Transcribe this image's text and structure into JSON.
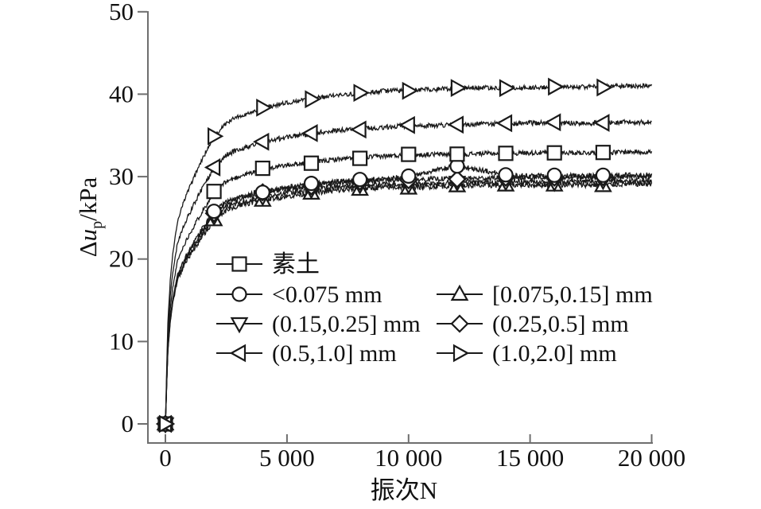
{
  "figure": {
    "background": "#ffffff"
  },
  "chart_data": {
    "type": "line",
    "title": "",
    "xlabel": "振次N",
    "ylabel": "Δu_p/kPa",
    "ylabel_parts": {
      "delta": "Δ",
      "var": "u",
      "sub": "p",
      "rest": "/kPa"
    },
    "xlim": [
      0,
      20000
    ],
    "ylim": [
      0,
      50
    ],
    "grid": false,
    "legend_position": "inside-lower-middle",
    "line_color": "#1a1a1a",
    "axis_color": "#6e6e6e",
    "marker_fill": "#ffffff",
    "xticks": {
      "values": [
        0,
        5000,
        10000,
        15000,
        20000
      ],
      "labels": [
        "0",
        "5 000",
        "10 000",
        "15 000",
        "20 000"
      ]
    },
    "yticks": {
      "values": [
        0,
        10,
        20,
        30,
        40,
        50
      ],
      "labels": [
        "0",
        "10",
        "20",
        "30",
        "40",
        "50"
      ]
    },
    "x_samples": [
      0,
      100,
      200,
      300,
      500,
      750,
      1000,
      1500,
      2000,
      2500,
      3000,
      4000,
      5000,
      6000,
      7000,
      8000,
      9000,
      10000,
      11000,
      12000,
      13000,
      14000,
      15000,
      16000,
      17000,
      18000,
      19000,
      20000
    ],
    "marker_start": 2000,
    "marker_interval": 2000,
    "marker_last": 18000,
    "series": [
      {
        "name": "素土",
        "marker": "square",
        "plateau": 33.0,
        "noise": 0.28,
        "values": [
          0,
          9.9,
          14.0,
          16.5,
          19.8,
          21.6,
          23.1,
          25.7,
          28.1,
          29.4,
          30.0,
          30.9,
          31.4,
          31.7,
          32.1,
          32.3,
          32.5,
          32.6,
          32.7,
          32.7,
          32.8,
          32.8,
          32.9,
          32.9,
          32.9,
          32.9,
          33.0,
          33.0
        ]
      },
      {
        "name": "<0.075 mm",
        "marker": "circle",
        "plateau": 30.2,
        "noise": 0.3,
        "values": [
          0,
          9.1,
          12.8,
          15.1,
          18.1,
          19.8,
          21.1,
          23.6,
          25.7,
          26.9,
          27.5,
          28.2,
          28.7,
          29.1,
          29.4,
          29.6,
          29.7,
          30.0,
          30.7,
          31.3,
          30.8,
          30.2,
          30.1,
          30.1,
          30.1,
          30.1,
          30.2,
          30.2
        ]
      },
      {
        "name": "[0.075,0.15] mm",
        "marker": "triangle-up",
        "plateau": 29.1,
        "noise": 0.32,
        "values": [
          0,
          8.7,
          12.4,
          14.6,
          17.5,
          19.1,
          20.4,
          22.7,
          24.7,
          25.9,
          26.5,
          27.2,
          27.6,
          28.0,
          28.3,
          28.5,
          28.7,
          28.7,
          28.8,
          28.9,
          28.9,
          29.0,
          29.0,
          29.0,
          29.0,
          29.0,
          29.1,
          29.1
        ]
      },
      {
        "name": "(0.15,0.25] mm",
        "marker": "triangle-down",
        "plateau": 29.5,
        "noise": 0.32,
        "values": [
          0,
          8.9,
          12.5,
          14.8,
          17.7,
          19.3,
          20.7,
          23.0,
          25.1,
          26.3,
          26.8,
          27.6,
          28.0,
          28.4,
          28.7,
          28.9,
          29.1,
          29.1,
          29.2,
          29.3,
          29.3,
          29.4,
          29.4,
          29.4,
          29.4,
          29.4,
          29.5,
          29.5
        ]
      },
      {
        "name": "(0.25,0.5] mm",
        "marker": "diamond",
        "plateau": 30.0,
        "noise": 0.3,
        "values": [
          0,
          9.0,
          12.8,
          15.0,
          18.0,
          19.7,
          21.0,
          23.4,
          25.5,
          26.7,
          27.3,
          28.1,
          28.5,
          28.9,
          29.2,
          29.4,
          29.6,
          29.6,
          29.7,
          29.8,
          29.8,
          29.9,
          29.9,
          29.9,
          29.9,
          29.9,
          30.0,
          30.0
        ]
      },
      {
        "name": "(0.5,1.0] mm",
        "marker": "triangle-left",
        "plateau": 36.6,
        "noise": 0.3,
        "values": [
          0,
          11.0,
          15.6,
          18.3,
          22.0,
          24.0,
          25.6,
          28.5,
          31.1,
          32.6,
          33.3,
          34.2,
          34.8,
          35.2,
          35.6,
          35.8,
          36.0,
          36.2,
          36.2,
          36.3,
          36.4,
          36.4,
          36.5,
          36.5,
          36.5,
          36.5,
          36.6,
          36.6
        ]
      },
      {
        "name": "(1.0,2.0] mm",
        "marker": "triangle-right",
        "plateau": 41.0,
        "noise": 0.28,
        "values": [
          0,
          12.3,
          17.4,
          20.5,
          24.6,
          26.9,
          28.7,
          32.0,
          34.9,
          36.5,
          37.3,
          38.3,
          39.0,
          39.4,
          39.9,
          40.1,
          40.4,
          40.5,
          40.6,
          40.7,
          40.8,
          40.8,
          40.8,
          40.9,
          40.9,
          40.9,
          41.0,
          41.0
        ]
      }
    ],
    "legend_layout": [
      [
        0,
        -1
      ],
      [
        1,
        2
      ],
      [
        3,
        4
      ],
      [
        5,
        6
      ]
    ]
  }
}
